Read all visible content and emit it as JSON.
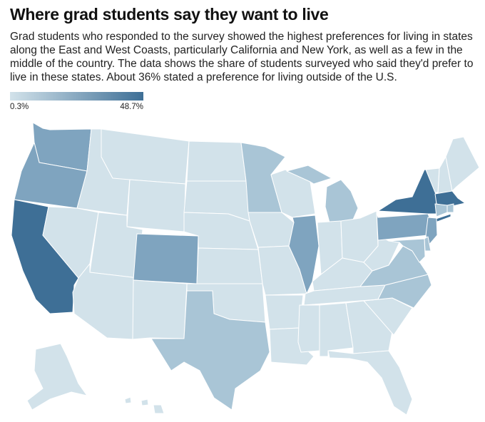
{
  "title": "Where grad students say they want to live",
  "subtitle": "Grad students who responded to the survey showed the highest preferences for living in states along the East and West Coasts, particularly California and New York, as well as a few in the middle of the country. The data shows the share of students surveyed who said they'd prefer to live in these states. About 36% stated a preference for living outside of the U.S.",
  "legend": {
    "min_label": "0.3%",
    "max_label": "48.7%",
    "min_value": 0.3,
    "max_value": 48.7,
    "min_color": "#d2e2ea",
    "max_color": "#3e6f96"
  },
  "colors": {
    "tier1": "#d2e2ea",
    "tier2": "#a9c5d6",
    "tier3": "#7fa4bf",
    "tier4": "#6791b2",
    "tier5": "#3e6f96"
  },
  "map_data": {
    "states": [
      {
        "state": "WA",
        "tier": "tier3"
      },
      {
        "state": "OR",
        "tier": "tier3"
      },
      {
        "state": "CA",
        "tier": "tier5"
      },
      {
        "state": "ID",
        "tier": "tier1"
      },
      {
        "state": "NV",
        "tier": "tier1"
      },
      {
        "state": "MT",
        "tier": "tier1"
      },
      {
        "state": "WY",
        "tier": "tier1"
      },
      {
        "state": "UT",
        "tier": "tier1"
      },
      {
        "state": "AZ",
        "tier": "tier1"
      },
      {
        "state": "CO",
        "tier": "tier3"
      },
      {
        "state": "NM",
        "tier": "tier1"
      },
      {
        "state": "ND",
        "tier": "tier1"
      },
      {
        "state": "SD",
        "tier": "tier1"
      },
      {
        "state": "NE",
        "tier": "tier1"
      },
      {
        "state": "KS",
        "tier": "tier1"
      },
      {
        "state": "OK",
        "tier": "tier1"
      },
      {
        "state": "TX",
        "tier": "tier2"
      },
      {
        "state": "MN",
        "tier": "tier2"
      },
      {
        "state": "IA",
        "tier": "tier1"
      },
      {
        "state": "MO",
        "tier": "tier1"
      },
      {
        "state": "AR",
        "tier": "tier1"
      },
      {
        "state": "LA",
        "tier": "tier1"
      },
      {
        "state": "WI",
        "tier": "tier1"
      },
      {
        "state": "IL",
        "tier": "tier3"
      },
      {
        "state": "MI",
        "tier": "tier2"
      },
      {
        "state": "IN",
        "tier": "tier1"
      },
      {
        "state": "OH",
        "tier": "tier1"
      },
      {
        "state": "KY",
        "tier": "tier1"
      },
      {
        "state": "TN",
        "tier": "tier1"
      },
      {
        "state": "MS",
        "tier": "tier1"
      },
      {
        "state": "AL",
        "tier": "tier1"
      },
      {
        "state": "GA",
        "tier": "tier1"
      },
      {
        "state": "FL",
        "tier": "tier1"
      },
      {
        "state": "SC",
        "tier": "tier1"
      },
      {
        "state": "NC",
        "tier": "tier2"
      },
      {
        "state": "VA",
        "tier": "tier2"
      },
      {
        "state": "WV",
        "tier": "tier1"
      },
      {
        "state": "PA",
        "tier": "tier3"
      },
      {
        "state": "NY",
        "tier": "tier5"
      },
      {
        "state": "VT",
        "tier": "tier1"
      },
      {
        "state": "NH",
        "tier": "tier1"
      },
      {
        "state": "ME",
        "tier": "tier1"
      },
      {
        "state": "MA",
        "tier": "tier5"
      },
      {
        "state": "RI",
        "tier": "tier2"
      },
      {
        "state": "CT",
        "tier": "tier2"
      },
      {
        "state": "NJ",
        "tier": "tier3"
      },
      {
        "state": "DE",
        "tier": "tier2"
      },
      {
        "state": "MD",
        "tier": "tier2"
      },
      {
        "state": "AK",
        "tier": "tier1"
      },
      {
        "state": "HI",
        "tier": "tier1"
      }
    ]
  }
}
